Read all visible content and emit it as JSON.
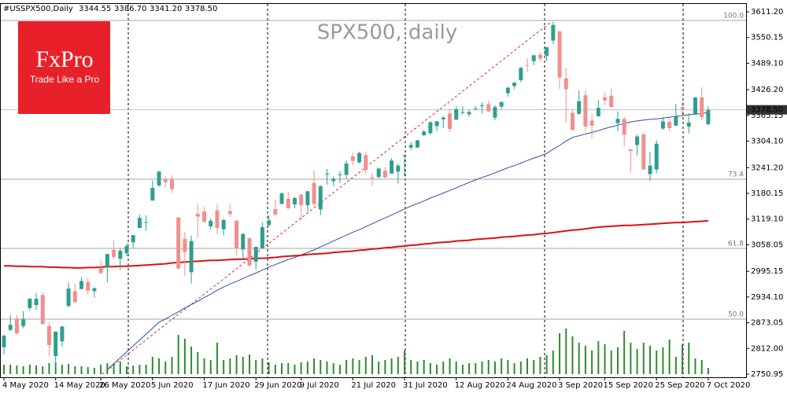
{
  "header": {
    "symbol": "#USSPX500,Daily",
    "ohlc": [
      "3344.55",
      "3386.70",
      "3341.20",
      "3378.50"
    ]
  },
  "logo": {
    "name": "FxPro",
    "slogan": "Trade Like a Pro"
  },
  "chart_data": {
    "type": "candlestick",
    "title": "SPX500, daily",
    "categories": [
      "4 May 2020",
      null,
      null,
      null,
      null,
      null,
      null,
      null,
      "14 May 2020",
      null,
      null,
      null,
      null,
      null,
      null,
      "26 May 2020",
      null,
      null,
      null,
      null,
      null,
      null,
      null,
      "5 Jun 2020",
      null,
      null,
      null,
      null,
      null,
      null,
      null,
      "17 Jun 2020",
      null,
      null,
      null,
      null,
      null,
      null,
      null,
      "29 Jun 2020",
      null,
      null,
      null,
      null,
      null,
      null,
      "9 Jul 2020",
      null,
      null,
      null,
      null,
      null,
      null,
      null,
      "21 Jul 2020",
      null,
      null,
      null,
      null,
      null,
      null,
      null,
      "31 Jul 2020",
      null,
      null,
      null,
      null,
      null,
      null,
      null,
      "12 Aug 2020",
      null,
      null,
      null,
      null,
      null,
      null,
      null,
      "24 Aug 2020",
      null,
      null,
      null,
      null,
      null,
      null,
      null,
      "3 Sep 2020",
      null,
      null,
      null,
      null,
      null,
      null,
      "15 Sep 2020",
      null,
      null,
      null,
      null,
      null,
      null,
      null,
      "25 Sep 2020",
      null,
      null,
      null,
      null,
      null,
      null,
      null,
      "7 Oct 2020"
    ],
    "open": [
      2815,
      2856,
      2883,
      2865,
      2908,
      2915,
      2939,
      2865,
      2794,
      2829,
      2913,
      2948,
      2953,
      2970,
      2948,
      3004,
      3006,
      3046,
      3025,
      3038,
      3064,
      3098,
      3111,
      3163,
      3199,
      3213,
      3213,
      3123,
      3072,
      2993,
      3132,
      3137,
      3102,
      3140,
      3095,
      3138,
      3115,
      3047,
      3074,
      3018,
      3050,
      3105,
      3143,
      3155,
      3167,
      3154,
      3177,
      3152,
      3205,
      3142,
      3225,
      3209,
      3224,
      3224,
      3268,
      3254,
      3271,
      3218,
      3219,
      3234,
      3227,
      3232,
      3270,
      3289,
      3289,
      3318,
      3323,
      3340,
      3356,
      3370,
      3355,
      3372,
      3368,
      3380,
      3387,
      3392,
      3360,
      3386,
      3418,
      3435,
      3449,
      3485,
      3494,
      3509,
      3507,
      3543,
      3565,
      3453,
      3371,
      3369,
      3413,
      3353,
      3363,
      3408,
      3412,
      3347,
      3357,
      3285,
      3295,
      3320,
      3226,
      3237,
      3334,
      3350,
      3341,
      3385,
      3339,
      3367,
      3408,
      3344.55
    ],
    "high": [
      2845,
      2891,
      2891,
      2901,
      2932,
      2944,
      2945,
      2875,
      2852,
      2865,
      2968,
      2965,
      2981,
      2979,
      2957,
      3021,
      3036,
      3068,
      3049,
      3062,
      3081,
      3130,
      3128,
      3211,
      3233,
      3222,
      3223,
      3123,
      3088,
      3080,
      3154,
      3148,
      3121,
      3155,
      3120,
      3154,
      3117,
      3085,
      3074,
      3053,
      3111,
      3128,
      3165,
      3183,
      3184,
      3172,
      3179,
      3186,
      3235,
      3200,
      3238,
      3220,
      3233,
      3258,
      3277,
      3279,
      3280,
      3228,
      3242,
      3243,
      3264,
      3251,
      3272,
      3302,
      3307,
      3330,
      3352,
      3352,
      3364,
      3381,
      3387,
      3388,
      3378,
      3388,
      3396,
      3400,
      3390,
      3399,
      3433,
      3444,
      3481,
      3501,
      3509,
      3514,
      3528,
      3588,
      3565,
      3479,
      3379,
      3424,
      3425,
      3368,
      3402,
      3419,
      3429,
      3375,
      3363,
      3285,
      3320,
      3324,
      3278,
      3306,
      3361,
      3358,
      3393,
      3397,
      3370,
      3409,
      3432,
      3386.7
    ],
    "low": [
      2798,
      2853,
      2844,
      2860,
      2902,
      2903,
      2869,
      2793,
      2766,
      2816,
      2909,
      2921,
      2953,
      2939,
      2933,
      2988,
      2969,
      3024,
      2999,
      3031,
      3051,
      3098,
      3091,
      3163,
      3196,
      3193,
      3181,
      2999,
      2984,
      2966,
      3074,
      3110,
      3094,
      3083,
      3080,
      3124,
      3033,
      3025,
      3005,
      2999,
      3048,
      3101,
      3125,
      3155,
      3142,
      3145,
      3116,
      3136,
      3149,
      3128,
      3201,
      3198,
      3205,
      3215,
      3247,
      3251,
      3227,
      3198,
      3215,
      3216,
      3227,
      3204,
      3220,
      3284,
      3288,
      3317,
      3319,
      3328,
      3335,
      3327,
      3355,
      3367,
      3362,
      3379,
      3370,
      3372,
      3354,
      3380,
      3410,
      3428,
      3444,
      3468,
      3484,
      3493,
      3494,
      3535,
      3427,
      3349,
      3329,
      3367,
      3329,
      3311,
      3363,
      3390,
      3384,
      3328,
      3292,
      3230,
      3270,
      3236,
      3209,
      3228,
      3331,
      3327,
      3340,
      3361,
      3323,
      3367,
      3354,
      3341.2
    ],
    "close": [
      2842,
      2868,
      2848,
      2881,
      2930,
      2930,
      2870,
      2820,
      2852,
      2864,
      2954,
      2922,
      2972,
      2949,
      2955,
      2991,
      3036,
      3029,
      3044,
      3055,
      3081,
      3122,
      3112,
      3193,
      3232,
      3207,
      3190,
      3002,
      3041,
      3067,
      3125,
      3113,
      3115,
      3098,
      3117,
      3131,
      3050,
      3084,
      3009,
      3053,
      3100,
      3116,
      3130,
      3180,
      3145,
      3169,
      3152,
      3185,
      3155,
      3197,
      3227,
      3215,
      3225,
      3251,
      3257,
      3276,
      3236,
      3216,
      3239,
      3218,
      3258,
      3246,
      3271,
      3295,
      3306,
      3327,
      3349,
      3351,
      3360,
      3333,
      3380,
      3373,
      3373,
      3381,
      3389,
      3375,
      3385,
      3397,
      3431,
      3443,
      3478,
      3484,
      3508,
      3500,
      3527,
      3580,
      3455,
      3427,
      3331,
      3399,
      3339,
      3341,
      3383,
      3401,
      3385,
      3357,
      3319,
      3281,
      3315,
      3237,
      3246,
      3298,
      3351,
      3335,
      3363,
      3381,
      3348,
      3408,
      3361,
      3378.5
    ],
    "up_color": "#2e9e8e",
    "down_color": "#f0908e",
    "series": [
      {
        "color": "#2b4fa8",
        "values": [
          null,
          null,
          null,
          null,
          null,
          null,
          null,
          null,
          null,
          null,
          null,
          null,
          null,
          null,
          null,
          null,
          2762,
          2776,
          2790,
          2804,
          2818,
          2832,
          2846,
          2860,
          2874,
          2882,
          2891,
          2899,
          2908,
          2916,
          2924,
          2933,
          2941,
          2950,
          2958,
          2965,
          2971,
          2978,
          2985,
          2991,
          2998,
          3005,
          3011,
          3017,
          3023,
          3028,
          3034,
          3040,
          3046,
          3053,
          3060,
          3067,
          3074,
          3081,
          3088,
          3094,
          3101,
          3108,
          3115,
          3122,
          3129,
          3136,
          3143,
          3150,
          3156,
          3162,
          3169,
          3175,
          3181,
          3187,
          3193,
          3200,
          3206,
          3212,
          3218,
          3223,
          3229,
          3235,
          3241,
          3246,
          3252,
          3258,
          3264,
          3269,
          3275,
          3285,
          3294,
          3304,
          3313,
          3317,
          3321,
          3325,
          3329,
          3334,
          3338,
          3342,
          3346,
          3350,
          3352,
          3354,
          3356,
          3357,
          3359,
          3361,
          3363,
          3365,
          3367,
          3368,
          3370,
          3372
        ]
      },
      {
        "color": "#dd1111",
        "values": [
          3008,
          3008,
          3007,
          3007,
          3006,
          3006,
          3006,
          3005,
          3005,
          3004,
          3004,
          3003,
          3003,
          3004,
          3004,
          3005,
          3006,
          3006,
          3007,
          3007,
          3008,
          3009,
          3010,
          3011,
          3012,
          3013,
          3015,
          3016,
          3017,
          3018,
          3019,
          3020,
          3021,
          3021,
          3022,
          3023,
          3024,
          3024,
          3025,
          3026,
          3026,
          3027,
          3028,
          3030,
          3031,
          3032,
          3033,
          3035,
          3036,
          3037,
          3038,
          3040,
          3041,
          3042,
          3043,
          3045,
          3046,
          3048,
          3049,
          3051,
          3052,
          3054,
          3055,
          3057,
          3058,
          3060,
          3061,
          3063,
          3064,
          3065,
          3067,
          3068,
          3069,
          3071,
          3072,
          3073,
          3074,
          3076,
          3077,
          3078,
          3080,
          3081,
          3082,
          3084,
          3085,
          3087,
          3089,
          3091,
          3093,
          3094,
          3096,
          3098,
          3100,
          3101,
          3102,
          3103,
          3104,
          3104,
          3105,
          3106,
          3107,
          3108,
          3109,
          3110,
          3111,
          3111,
          3112,
          3113,
          3114,
          3115
        ]
      }
    ],
    "volume": [
      12,
      12,
      11,
      10,
      12,
      11,
      10,
      14,
      15,
      12,
      13,
      10,
      10,
      9,
      8,
      12,
      14,
      13,
      16,
      10,
      11,
      12,
      12,
      22,
      20,
      16,
      22,
      50,
      45,
      35,
      28,
      20,
      18,
      40,
      18,
      20,
      24,
      22,
      25,
      18,
      20,
      15,
      12,
      14,
      14,
      12,
      15,
      16,
      20,
      18,
      16,
      14,
      12,
      18,
      20,
      18,
      22,
      24,
      16,
      18,
      20,
      22,
      30,
      18,
      16,
      18,
      14,
      12,
      16,
      20,
      16,
      12,
      14,
      14,
      16,
      18,
      16,
      20,
      18,
      14,
      16,
      20,
      18,
      22,
      24,
      30,
      52,
      58,
      48,
      40,
      36,
      30,
      42,
      38,
      30,
      34,
      55,
      40,
      32,
      40,
      36,
      30,
      34,
      44,
      22,
      38,
      40,
      20,
      18,
      8
    ],
    "volume_color": "#2e8b2e",
    "ylim": [
      2743.5,
      3629.9
    ],
    "yticks": [
      {
        "value": 3611.2,
        "label": "3611.20"
      },
      3550.15,
      {
        "value": 3489.1,
        "label": "3489.10"
      },
      {
        "value": 3426.2,
        "label": "3426.20"
      },
      3365.15,
      {
        "value": 3304.1,
        "label": "3304.10"
      },
      {
        "value": 3241.2,
        "label": "3241.20"
      },
      3180.15,
      {
        "value": 3119.1,
        "label": "3119.10"
      },
      3058.05,
      2995.15,
      {
        "value": 2934.1,
        "label": "2934.10"
      },
      2873.05,
      {
        "value": 2812,
        "label": "2812.00"
      },
      2750.95
    ],
    "fib_levels": [
      {
        "value": 3590.7,
        "label": "100.0"
      },
      {
        "value": 3213.7,
        "label": "73.4"
      },
      {
        "value": 3049.5,
        "label": "61.8"
      },
      {
        "value": 2881.6,
        "label": "50.0"
      }
    ],
    "price_label": {
      "value": 3378.5,
      "label": "3378.50"
    }
  }
}
